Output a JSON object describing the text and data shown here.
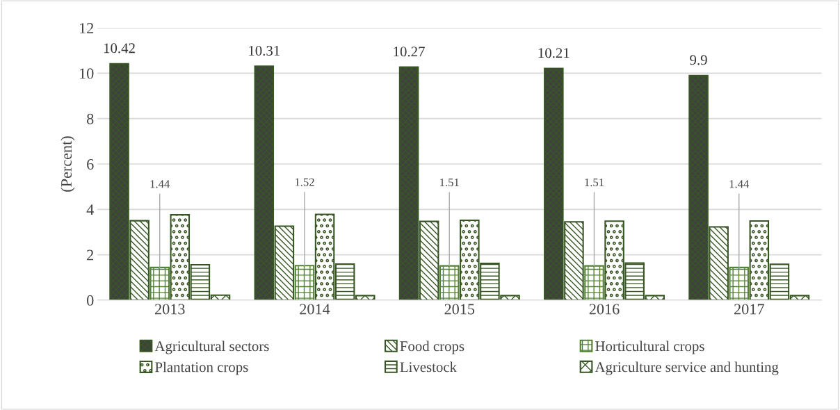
{
  "chart_data": {
    "type": "bar",
    "ylabel": "(Percent)",
    "categories": [
      "2013",
      "2014",
      "2015",
      "2016",
      "2017"
    ],
    "series": [
      {
        "name": "Agricultural sectors",
        "color": "#375623",
        "values": [
          10.42,
          10.31,
          10.27,
          10.21,
          9.9
        ],
        "value_labels": [
          "10.42",
          "10.31",
          "10.27",
          "10.21",
          "9.9"
        ]
      },
      {
        "name": "Food crops",
        "color": "#375623",
        "values": [
          3.5,
          3.26,
          3.47,
          3.45,
          3.23
        ]
      },
      {
        "name": "Horticultural crops",
        "color": "#548235",
        "values": [
          1.44,
          1.52,
          1.51,
          1.51,
          1.44
        ],
        "value_labels": [
          "1.44",
          "1.52",
          "1.51",
          "1.51",
          "1.44"
        ]
      },
      {
        "name": "Plantation crops",
        "color": "#375623",
        "values": [
          3.76,
          3.78,
          3.52,
          3.48,
          3.49
        ]
      },
      {
        "name": "Livestock",
        "color": "#375623",
        "values": [
          1.56,
          1.59,
          1.62,
          1.63,
          1.58
        ]
      },
      {
        "name": "Agriculture service and hunting",
        "color": "#375623",
        "values": [
          0.22,
          0.2,
          0.2,
          0.2,
          0.2
        ]
      }
    ],
    "ylim": [
      0,
      12
    ],
    "yticks": [
      0,
      2,
      4,
      6,
      8,
      10,
      12
    ],
    "grid": "y",
    "legend": "bottom"
  }
}
